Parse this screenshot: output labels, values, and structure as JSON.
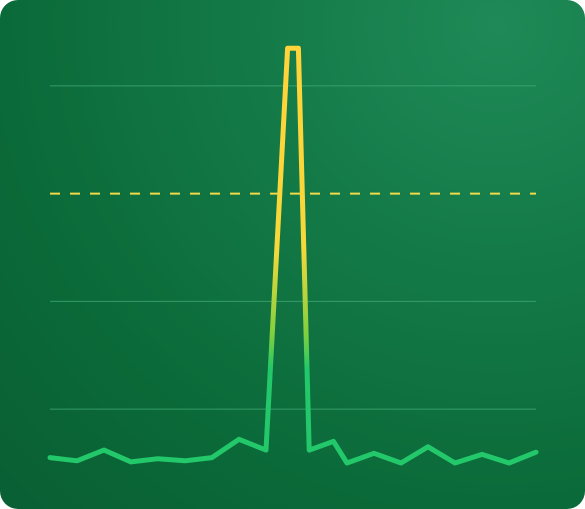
{
  "colors": {
    "background": "#0e7040",
    "grid": "#3fa873",
    "threshold": "#f2d94a",
    "line_low": "#22c86a",
    "line_high": "#ffd43b"
  },
  "chart_data": {
    "type": "line",
    "title": "",
    "xlabel": "",
    "ylabel": "",
    "grid": true,
    "legend": "none",
    "xlim": [
      0,
      18
    ],
    "ylim": [
      0,
      4
    ],
    "gridlines_y": [
      0.5,
      1.5,
      3.5
    ],
    "threshold": 2.5,
    "series": [
      {
        "x": [
          0,
          1,
          2,
          3,
          4,
          5,
          6,
          7,
          8,
          8.8,
          9.2,
          9.6,
          10.5,
          11,
          12,
          13,
          14,
          15,
          16,
          17,
          18
        ],
        "y": [
          0.05,
          0.02,
          0.12,
          0.01,
          0.04,
          0.02,
          0.05,
          0.22,
          0.12,
          3.85,
          3.85,
          0.12,
          0.2,
          0.0,
          0.09,
          0.0,
          0.15,
          0.0,
          0.08,
          0.0,
          0.1
        ]
      }
    ]
  }
}
